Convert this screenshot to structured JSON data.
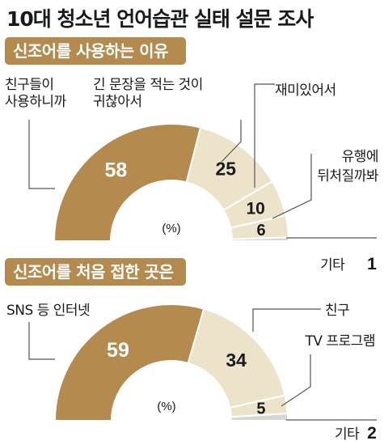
{
  "title": "10대 청소년 언어습관 실태 설문 조사",
  "colors": {
    "main": "#b48a4f",
    "light": "#ede3cb",
    "gray": "#d6d6d6",
    "line": "#555555"
  },
  "chart_data": [
    {
      "type": "pie",
      "subtype": "semi-donut",
      "title": "신조어를 사용하는 이유",
      "unit": "(%)",
      "categories": [
        "친구들이 사용하니까",
        "긴 문장을 적는 것이 귀찮아서",
        "재미있어서",
        "유행에 뒤처질까봐",
        "기타"
      ],
      "values": [
        58,
        25,
        10,
        6,
        1
      ],
      "value_labels": [
        "58",
        "25",
        "10",
        "6",
        "1"
      ],
      "label_lines": [
        [
          "친구들이",
          "사용하니까"
        ],
        [
          "긴 문장을 적는 것이",
          "귀찮아서"
        ],
        [
          "재미있어서"
        ],
        [
          "유행에",
          "뒤처질까봐"
        ],
        [
          "기타"
        ]
      ]
    },
    {
      "type": "pie",
      "subtype": "semi-donut",
      "title": "신조어를 처음 접한 곳은",
      "unit": "(%)",
      "categories": [
        "SNS 등 인터넷",
        "친구",
        "TV 프로그램",
        "기타"
      ],
      "values": [
        59,
        34,
        5,
        2
      ],
      "value_labels": [
        "59",
        "34",
        "5",
        "2"
      ],
      "label_lines": [
        [
          "SNS 등 인터넷"
        ],
        [
          "친구"
        ],
        [
          "TV 프로그램"
        ],
        [
          "기타"
        ]
      ]
    }
  ]
}
